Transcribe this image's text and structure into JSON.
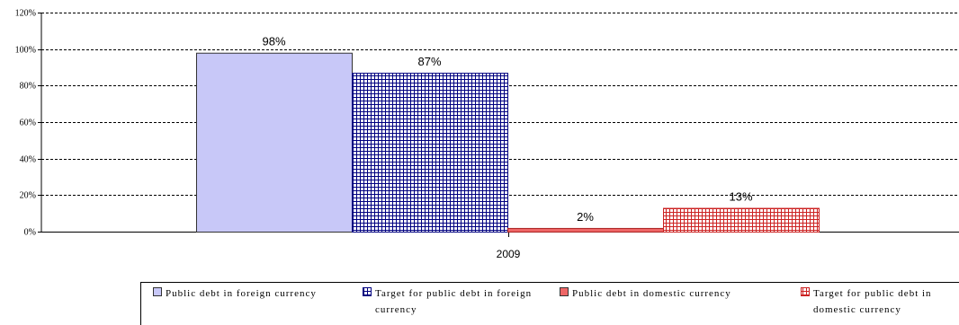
{
  "chart_data": {
    "type": "bar",
    "categories": [
      "2009"
    ],
    "series": [
      {
        "name": "Public debt in foreign currency",
        "values": [
          98
        ],
        "label": "98%",
        "color": "#c8c8f8",
        "pattern": "solid"
      },
      {
        "name": "Target for  public debt in foreign currency",
        "values": [
          87
        ],
        "label": "87%",
        "color": "#000080",
        "pattern": "grid"
      },
      {
        "name": "Public debt in domestic currency",
        "values": [
          2
        ],
        "label": "2%",
        "color": "#ee6666",
        "pattern": "solid"
      },
      {
        "name": "Target for public debt in domestic currency",
        "values": [
          13
        ],
        "label": "13%",
        "color": "#cc2222",
        "pattern": "grid"
      }
    ],
    "y_ticks": [
      "0%",
      "20%",
      "40%",
      "60%",
      "80%",
      "100%",
      "120%"
    ],
    "ylim": [
      0,
      120
    ],
    "grid": true,
    "legend_position": "bottom",
    "legend_lines": [
      [
        "Public debt in foreign currency"
      ],
      [
        "Target for  public debt in foreign",
        "currency"
      ],
      [
        "Public debt in domestic currency"
      ],
      [
        "Target for public debt in",
        "domestic currency"
      ]
    ]
  }
}
